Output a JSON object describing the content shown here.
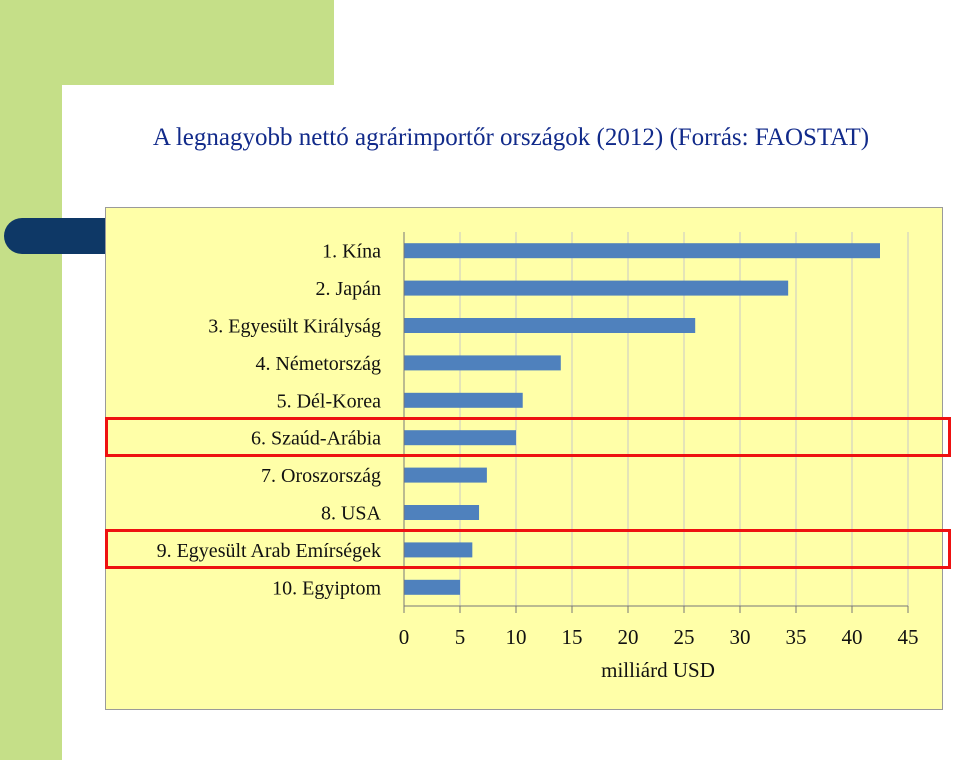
{
  "slide": {
    "title": "A legnagyobb nettó agrárimportőr országok (2012) (Forrás: FAOSTAT)"
  },
  "colors": {
    "green": "#c5df88",
    "navy": "#0e3866",
    "plot_bg": "#ffffa8",
    "bar": "#4f81bd",
    "highlight": "#ee1111",
    "title": "#112a8a"
  },
  "chart_data": {
    "type": "bar",
    "orientation": "horizontal",
    "title": "",
    "xlabel": "milliárd USD",
    "ylabel": "",
    "categories": [
      "1. Kína",
      "2. Japán",
      "3. Egyesült Királyság",
      "4. Németország",
      "5. Dél-Korea",
      "6. Szaúd-Arábia",
      "7. Oroszország",
      "8. USA",
      "9. Egyesült Arab Emírségek",
      "10. Egyiptom"
    ],
    "values": [
      42.5,
      34.3,
      26.0,
      14.0,
      10.6,
      10.0,
      7.4,
      6.7,
      6.1,
      5.0
    ],
    "xlim": [
      0,
      45
    ],
    "xticks": [
      "0",
      "5",
      "10",
      "15",
      "20",
      "25",
      "30",
      "35",
      "40",
      "45"
    ],
    "grid": "vertical",
    "legend": "none",
    "highlighted_categories": [
      "6. Szaúd-Arábia",
      "9. Egyesült Arab Emírségek"
    ]
  }
}
